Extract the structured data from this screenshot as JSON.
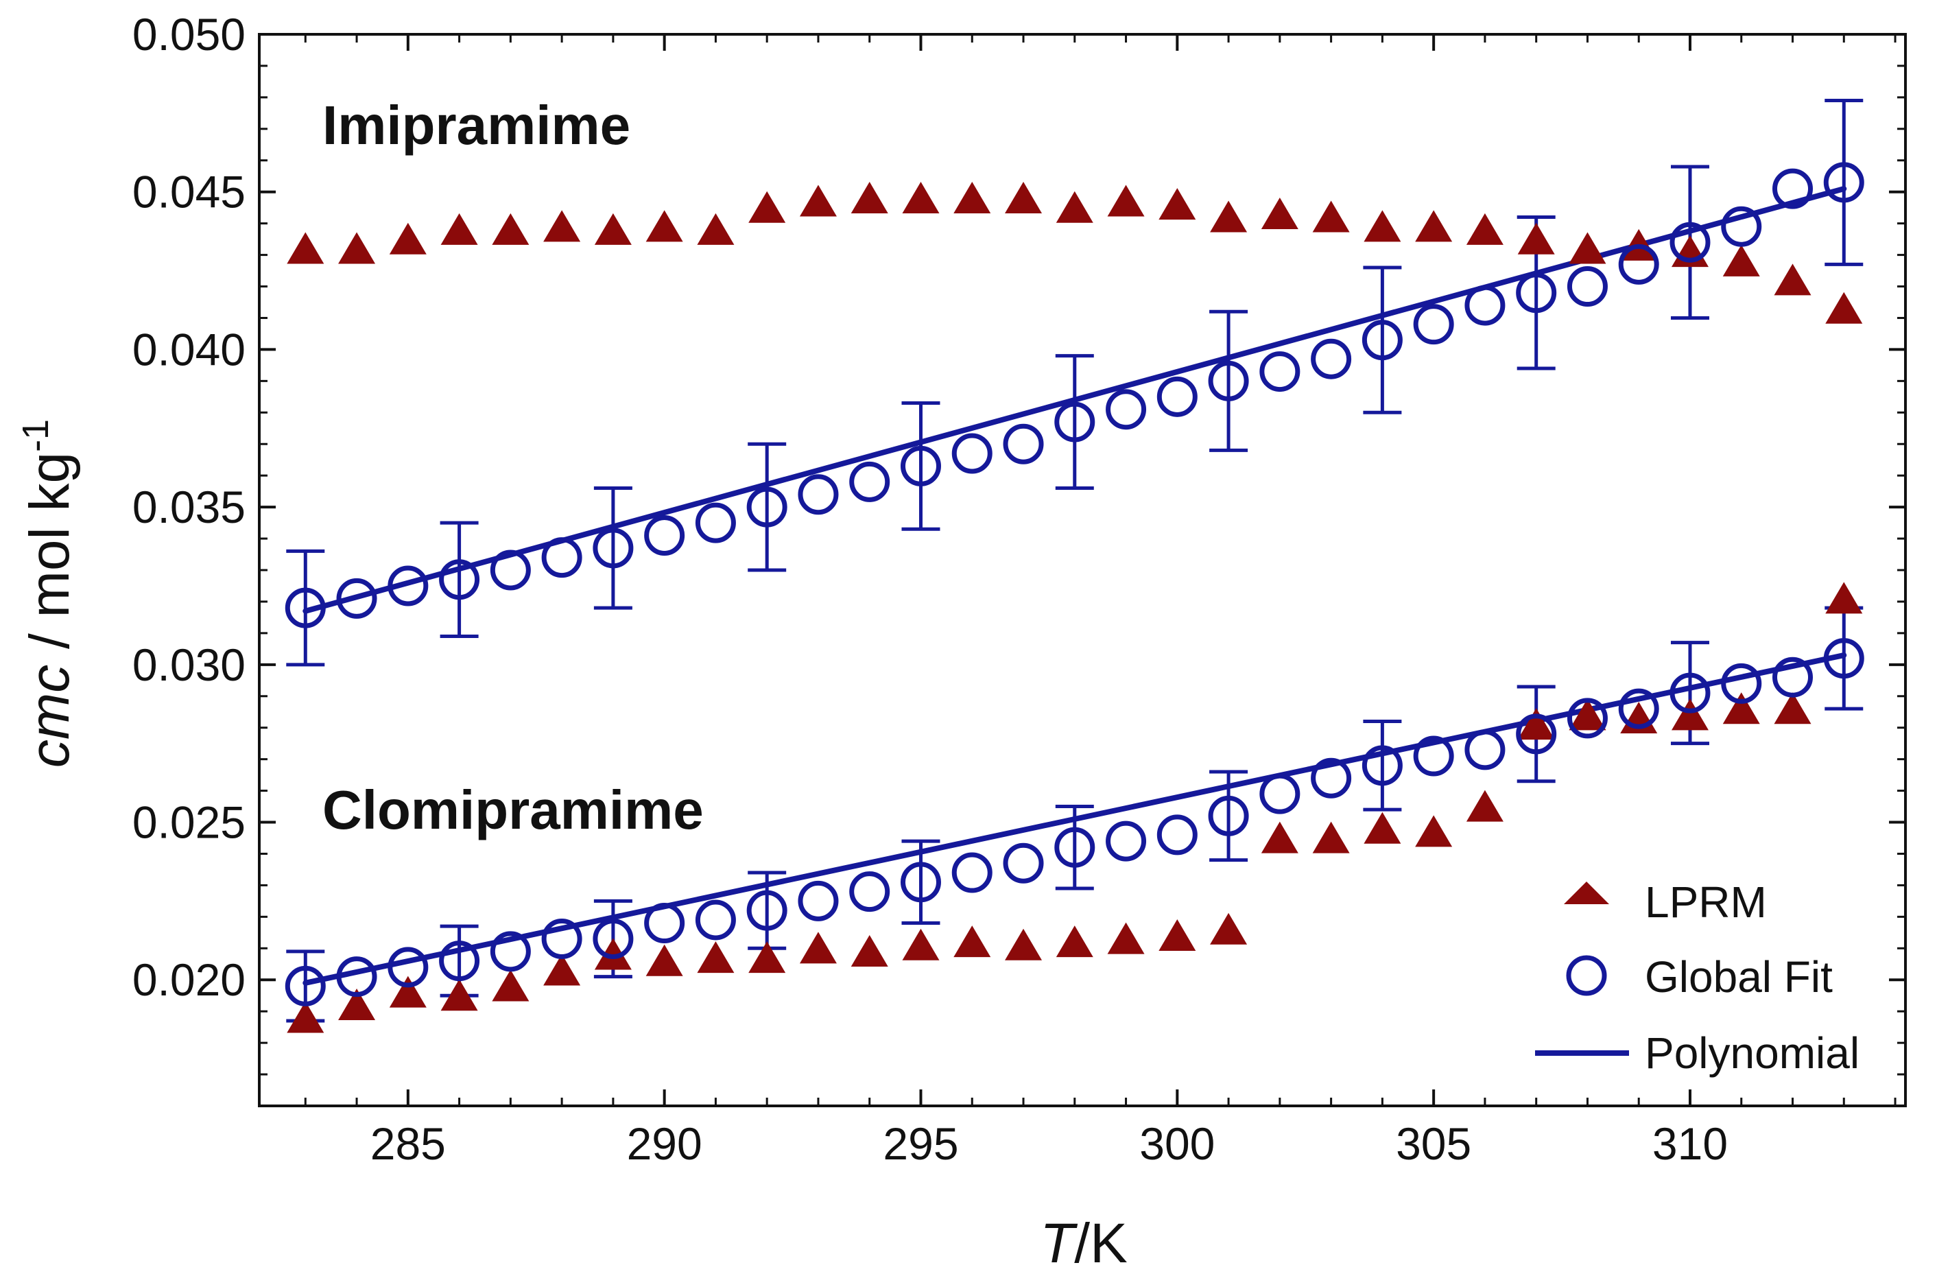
{
  "chart_data": {
    "type": "scatter",
    "title": "",
    "xlabel": {
      "italic": "T",
      "rest": "/K"
    },
    "ylabel": {
      "italic": "cmc",
      "rest": " / mol kg",
      "sup": "-1"
    },
    "xlim": [
      282.1,
      314.2
    ],
    "ylim": [
      0.016,
      0.05
    ],
    "xticks": [
      285,
      290,
      295,
      300,
      305,
      310
    ],
    "xtick_labels": [
      "285",
      "290",
      "295",
      "300",
      "305",
      "310"
    ],
    "xminor_step": 1,
    "yticks": [
      0.02,
      0.025,
      0.03,
      0.035,
      0.04,
      0.045,
      0.05
    ],
    "ytick_labels": [
      "0.020",
      "0.025",
      "0.030",
      "0.035",
      "0.040",
      "0.045",
      "0.050"
    ],
    "yminor_step": 0.001,
    "annotations": [
      {
        "text": "Imipramime",
        "x": 285.3,
        "y": 0.0474
      },
      {
        "text": "Clomipramime",
        "x": 285.3,
        "y": 0.0257
      }
    ],
    "legend": {
      "position": "bottom-right",
      "entries": [
        {
          "label": "LPRM",
          "marker": "triangle",
          "color": "#8B0A0A"
        },
        {
          "label": "Global Fit",
          "marker": "circle-open",
          "color": "#15199A"
        },
        {
          "label": "Polynomial",
          "marker": "line",
          "color": "#15199A"
        }
      ]
    },
    "colors": {
      "lprm": "#8B0A0A",
      "fit": "#15199A",
      "axis": "#111111"
    },
    "series": [
      {
        "name": "LPRM",
        "group": "Imipramime",
        "marker": "triangle",
        "x": [
          283,
          284,
          285,
          286,
          287,
          288,
          289,
          290,
          291,
          292,
          293,
          294,
          295,
          296,
          297,
          298,
          299,
          300,
          301,
          302,
          303,
          304,
          305,
          306,
          307,
          308,
          309,
          310,
          311,
          312,
          313
        ],
        "y": [
          0.0431,
          0.0431,
          0.0434,
          0.0437,
          0.0437,
          0.0438,
          0.0437,
          0.0438,
          0.0437,
          0.0444,
          0.0446,
          0.0447,
          0.0447,
          0.0447,
          0.0447,
          0.0444,
          0.0446,
          0.0445,
          0.0441,
          0.0442,
          0.0441,
          0.0438,
          0.0438,
          0.0437,
          0.0434,
          0.0431,
          0.0432,
          0.043,
          0.0427,
          0.0421,
          0.0412
        ]
      },
      {
        "name": "Global Fit",
        "group": "Imipramime",
        "marker": "circle-open",
        "x": [
          283,
          284,
          285,
          286,
          287,
          288,
          289,
          290,
          291,
          292,
          293,
          294,
          295,
          296,
          297,
          298,
          299,
          300,
          301,
          302,
          303,
          304,
          305,
          306,
          307,
          308,
          309,
          310,
          311,
          312,
          313
        ],
        "y": [
          0.0318,
          0.0321,
          0.0325,
          0.0327,
          0.033,
          0.0334,
          0.0337,
          0.0341,
          0.0345,
          0.035,
          0.0354,
          0.0358,
          0.0363,
          0.0367,
          0.037,
          0.0377,
          0.0381,
          0.0385,
          0.039,
          0.0393,
          0.0397,
          0.0403,
          0.0408,
          0.0414,
          0.0418,
          0.042,
          0.0427,
          0.0434,
          0.0439,
          0.0451,
          0.0453
        ],
        "error_bars": [
          {
            "x": 283,
            "err": 0.0018
          },
          {
            "x": 286,
            "err": 0.0018
          },
          {
            "x": 289,
            "err": 0.0019
          },
          {
            "x": 292,
            "err": 0.002
          },
          {
            "x": 295,
            "err": 0.002
          },
          {
            "x": 298,
            "err": 0.0021
          },
          {
            "x": 301,
            "err": 0.0022
          },
          {
            "x": 304,
            "err": 0.0023
          },
          {
            "x": 307,
            "err": 0.0024
          },
          {
            "x": 310,
            "err": 0.0024
          },
          {
            "x": 313,
            "err": 0.0026
          }
        ]
      },
      {
        "name": "Polynomial",
        "group": "Imipramime",
        "marker": "line",
        "x": [
          283,
          313
        ],
        "y": [
          0.0317,
          0.0451
        ]
      },
      {
        "name": "LPRM",
        "group": "Clomipramime",
        "marker": "triangle",
        "x": [
          283,
          284,
          285,
          286,
          287,
          288,
          289,
          290,
          291,
          292,
          293,
          294,
          295,
          296,
          297,
          298,
          299,
          300,
          301,
          302,
          303,
          304,
          305,
          306,
          307,
          308,
          309,
          310,
          311,
          312,
          313
        ],
        "y": [
          0.0187,
          0.0191,
          0.0195,
          0.0194,
          0.0197,
          0.0202,
          0.0207,
          0.0205,
          0.0206,
          0.0206,
          0.0209,
          0.0208,
          0.021,
          0.0211,
          0.021,
          0.0211,
          0.0212,
          0.0213,
          0.0215,
          0.0244,
          0.0244,
          0.0247,
          0.0246,
          0.0254,
          0.028,
          0.0283,
          0.0282,
          0.0283,
          0.0285,
          0.0285,
          0.032
        ]
      },
      {
        "name": "Global Fit",
        "group": "Clomipramime",
        "marker": "circle-open",
        "x": [
          283,
          284,
          285,
          286,
          287,
          288,
          289,
          290,
          291,
          292,
          293,
          294,
          295,
          296,
          297,
          298,
          299,
          300,
          301,
          302,
          303,
          304,
          305,
          306,
          307,
          308,
          309,
          310,
          311,
          312,
          313
        ],
        "y": [
          0.0198,
          0.0201,
          0.0204,
          0.0206,
          0.0209,
          0.0213,
          0.0213,
          0.0218,
          0.0219,
          0.0222,
          0.0225,
          0.0228,
          0.0231,
          0.0234,
          0.0237,
          0.0242,
          0.0244,
          0.0246,
          0.0252,
          0.0259,
          0.0264,
          0.0268,
          0.0271,
          0.0273,
          0.0278,
          0.0283,
          0.0286,
          0.0291,
          0.0294,
          0.0296,
          0.0302
        ],
        "error_bars": [
          {
            "x": 283,
            "err": 0.0011
          },
          {
            "x": 286,
            "err": 0.0011
          },
          {
            "x": 289,
            "err": 0.0012
          },
          {
            "x": 292,
            "err": 0.0012
          },
          {
            "x": 295,
            "err": 0.0013
          },
          {
            "x": 298,
            "err": 0.0013
          },
          {
            "x": 301,
            "err": 0.0014
          },
          {
            "x": 304,
            "err": 0.0014
          },
          {
            "x": 307,
            "err": 0.0015
          },
          {
            "x": 310,
            "err": 0.0016
          },
          {
            "x": 313,
            "err": 0.0016
          }
        ]
      },
      {
        "name": "Polynomial",
        "group": "Clomipramime",
        "marker": "line",
        "x": [
          283,
          313
        ],
        "y": [
          0.0199,
          0.0303
        ]
      }
    ]
  }
}
